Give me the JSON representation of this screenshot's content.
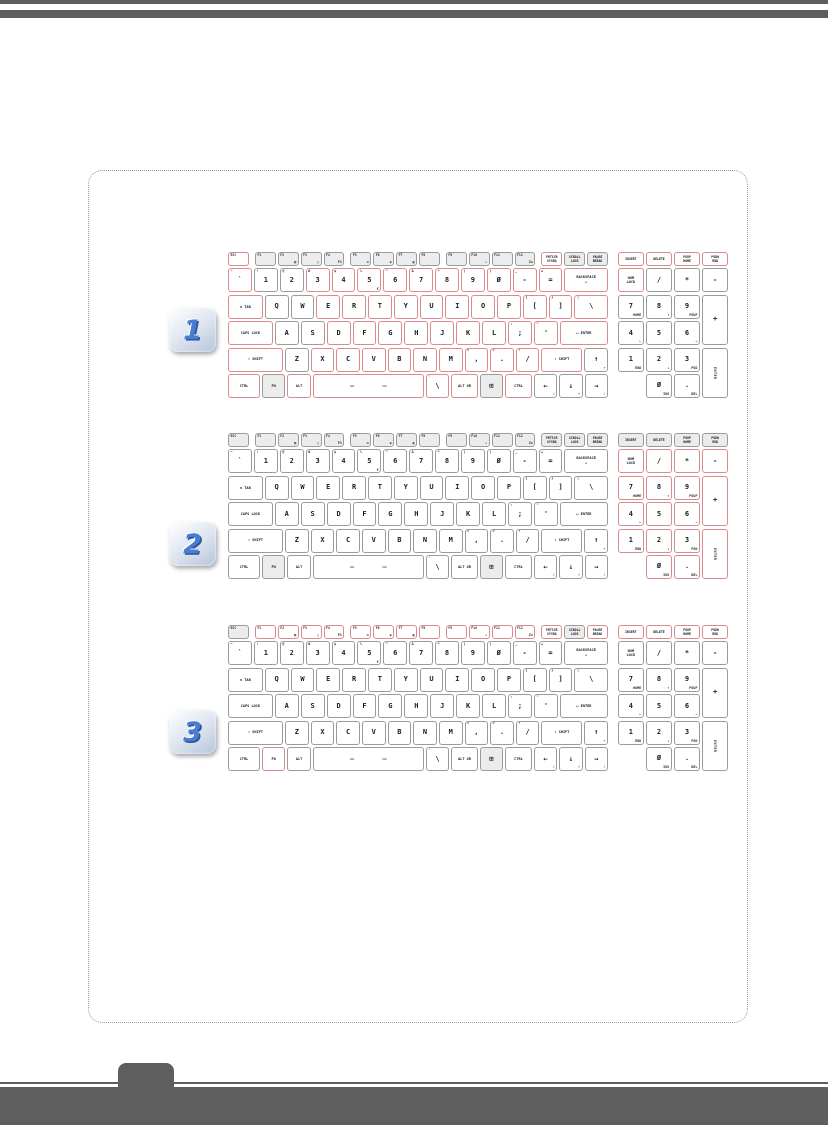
{
  "page": {
    "bar_color": "#5e5e5e",
    "panel_border_color": "#9a9a9a",
    "badge_number_color": "#4b7bd2",
    "key_highlight_color": "#db8b8b",
    "key_normal_border_color": "#9b9b9b"
  },
  "figures": [
    {
      "number": "1",
      "red_keys": [
        "esc",
        "grave",
        "n3",
        "n4",
        "n5",
        "n6",
        "n7",
        "n8",
        "n9",
        "n0",
        "minus",
        "equals",
        "backspace",
        "tab",
        "e",
        "r",
        "t",
        "y",
        "u",
        "i",
        "o",
        "p",
        "lbrk",
        "rbrk",
        "bslash",
        "caps",
        "d",
        "f",
        "g",
        "h",
        "j",
        "k",
        "l",
        "semi",
        "quote",
        "enter",
        "lshift",
        "x",
        "c",
        "v",
        "b",
        "n",
        "m",
        "comma",
        "period",
        "slash",
        "rshift",
        "lctrl",
        "alt",
        "space",
        "intl",
        "altgr",
        "rctrl",
        "prtscr",
        "npins",
        "npdel",
        "nppgup",
        "nppgdn",
        "npnum"
      ]
    },
    {
      "number": "2",
      "red_keys": [
        "npnum",
        "npdiv",
        "npmul",
        "npminus",
        "np7",
        "np8",
        "np9",
        "npplus",
        "np4",
        "np5",
        "np6",
        "np1",
        "np2",
        "np3",
        "npenter",
        "np0",
        "npdot"
      ]
    },
    {
      "number": "3",
      "red_keys": [
        "f1",
        "f2",
        "f3",
        "f4",
        "f5",
        "f6",
        "f7",
        "f8",
        "f9",
        "f10",
        "f11",
        "f12",
        "prtscr",
        "pause",
        "fn",
        "npins",
        "npdel",
        "nppgup",
        "nppgdn"
      ]
    }
  ],
  "keyboard": {
    "frow": [
      {
        "id": "esc",
        "t": "ESC"
      },
      {
        "id": "f1",
        "t": "F1",
        "g": 1
      },
      {
        "id": "f2",
        "t": "F2",
        "s": "▦"
      },
      {
        "id": "f3",
        "t": "F3",
        "s": "▢"
      },
      {
        "id": "f4",
        "t": "F4",
        "s": "P1"
      },
      {
        "id": "f5",
        "t": "F5",
        "s": "▬",
        "g": 1
      },
      {
        "id": "f6",
        "t": "F6",
        "s": "◉"
      },
      {
        "id": "f7",
        "t": "F7",
        "s": "▣"
      },
      {
        "id": "f8",
        "t": "F8"
      },
      {
        "id": "f9",
        "t": "F9",
        "g": 1
      },
      {
        "id": "f10",
        "t": "F10",
        "s": "✈"
      },
      {
        "id": "f11",
        "t": "F11"
      },
      {
        "id": "f12",
        "t": "F12",
        "s": "Zz"
      },
      {
        "id": "prtscr",
        "m": "PRTSCR\nSYSRQ",
        "g": 1
      },
      {
        "id": "scrlk",
        "m": "SCROLL\nLOCK"
      },
      {
        "id": "pause",
        "m": "PAUSE\nBREAK"
      }
    ],
    "rows": [
      [
        {
          "id": "grave",
          "t": "~",
          "m": "`"
        },
        {
          "id": "n1",
          "t": "!",
          "m": "1"
        },
        {
          "id": "n2",
          "t": "@",
          "m": "2"
        },
        {
          "id": "n3",
          "t": "#",
          "m": "3"
        },
        {
          "id": "n4",
          "t": "$",
          "m": "4"
        },
        {
          "id": "n5",
          "t": "%",
          "m": "5",
          "s": "€"
        },
        {
          "id": "n6",
          "t": "^",
          "m": "6"
        },
        {
          "id": "n7",
          "t": "&",
          "m": "7"
        },
        {
          "id": "n8",
          "t": "*",
          "m": "8"
        },
        {
          "id": "n9",
          "t": "(",
          "m": "9"
        },
        {
          "id": "n0",
          "t": ")",
          "m": "Ø"
        },
        {
          "id": "minus",
          "t": "_",
          "m": "-"
        },
        {
          "id": "equals",
          "t": "+",
          "m": "="
        },
        {
          "id": "backspace",
          "m": "BACKSPACE\n←",
          "w": 1.9
        }
      ],
      [
        {
          "id": "tab",
          "m": "⇆ TAB",
          "w": 1.5
        },
        {
          "id": "q",
          "m": "Q"
        },
        {
          "id": "w",
          "m": "W"
        },
        {
          "id": "e",
          "m": "E"
        },
        {
          "id": "r",
          "m": "R"
        },
        {
          "id": "t",
          "m": "T"
        },
        {
          "id": "y",
          "m": "Y"
        },
        {
          "id": "u",
          "m": "U"
        },
        {
          "id": "i",
          "m": "I"
        },
        {
          "id": "o",
          "m": "O"
        },
        {
          "id": "p",
          "m": "P"
        },
        {
          "id": "lbrk",
          "t": "{",
          "m": "["
        },
        {
          "id": "rbrk",
          "t": "}",
          "m": "]"
        },
        {
          "id": "bslash",
          "t": "|",
          "m": "\\",
          "w": 1.45
        }
      ],
      [
        {
          "id": "caps",
          "m": "CAPS LOCK",
          "w": 1.95
        },
        {
          "id": "a",
          "m": "A"
        },
        {
          "id": "s",
          "m": "S"
        },
        {
          "id": "d",
          "m": "D"
        },
        {
          "id": "f",
          "m": "F"
        },
        {
          "id": "g",
          "m": "G"
        },
        {
          "id": "h",
          "m": "H"
        },
        {
          "id": "j",
          "m": "J"
        },
        {
          "id": "k",
          "m": "K"
        },
        {
          "id": "l",
          "m": "L"
        },
        {
          "id": "semi",
          "t": ":",
          "m": ";"
        },
        {
          "id": "quote",
          "t": "\"",
          "m": "'"
        },
        {
          "id": "enter",
          "m": "↵ ENTER",
          "w": 2.1
        }
      ],
      [
        {
          "id": "lshift",
          "m": "⇧ SHIFT",
          "w": 2.45
        },
        {
          "id": "z",
          "m": "Z"
        },
        {
          "id": "x",
          "m": "X"
        },
        {
          "id": "c",
          "m": "C"
        },
        {
          "id": "v",
          "m": "V"
        },
        {
          "id": "b",
          "m": "B"
        },
        {
          "id": "n",
          "m": "N"
        },
        {
          "id": "m",
          "m": "M"
        },
        {
          "id": "comma",
          "t": "<",
          "m": ","
        },
        {
          "id": "period",
          "t": ">",
          "m": "."
        },
        {
          "id": "slash",
          "t": "?",
          "m": "/"
        },
        {
          "id": "rshift",
          "m": "⇧ SHIFT",
          "w": 1.8
        },
        {
          "id": "up",
          "m": "↑",
          "s": "☀"
        }
      ],
      [
        {
          "id": "lctrl",
          "m": "CTRL",
          "w": 1.4
        },
        {
          "id": "fn",
          "m": "FN"
        },
        {
          "id": "alt",
          "m": "ALT"
        },
        {
          "id": "space",
          "m": "— —",
          "w": 5.1
        },
        {
          "id": "intl",
          "t": "'",
          "m": "\\"
        },
        {
          "id": "altgr",
          "m": "ALT GR",
          "w": 1.15
        },
        {
          "id": "win",
          "m": "⊞"
        },
        {
          "id": "rctrl",
          "m": "CTRL",
          "w": 1.15
        },
        {
          "id": "left",
          "m": "←",
          "s": "♪"
        },
        {
          "id": "down",
          "m": "↓",
          "s": "☀"
        },
        {
          "id": "right",
          "m": "→",
          "s": "♪"
        }
      ]
    ],
    "numpad": [
      {
        "id": "npins",
        "m": "INSERT",
        "c": 1,
        "r": 1
      },
      {
        "id": "npdel",
        "m": "DELETE",
        "c": 2,
        "r": 1
      },
      {
        "id": "nppgup",
        "m": "PGUP\nHOME",
        "c": 3,
        "r": 1
      },
      {
        "id": "nppgdn",
        "m": "PGDN\nEND",
        "c": 4,
        "r": 1
      },
      {
        "id": "npnum",
        "m": "NUM\nLOCK",
        "c": 1,
        "r": 2
      },
      {
        "id": "npdiv",
        "m": "/",
        "c": 2,
        "r": 2
      },
      {
        "id": "npmul",
        "m": "*",
        "c": 3,
        "r": 2
      },
      {
        "id": "npminus",
        "m": "-",
        "c": 4,
        "r": 2
      },
      {
        "id": "np7",
        "m": "7",
        "s": "HOME",
        "c": 1,
        "r": 3
      },
      {
        "id": "np8",
        "m": "8",
        "s": "↑",
        "c": 2,
        "r": 3
      },
      {
        "id": "np9",
        "m": "9",
        "s": "PGUP",
        "c": 3,
        "r": 3
      },
      {
        "id": "npplus",
        "m": "+",
        "c": 4,
        "r": 3,
        "rs": 2
      },
      {
        "id": "np4",
        "m": "4",
        "s": "←",
        "c": 1,
        "r": 4
      },
      {
        "id": "np5",
        "m": "5",
        "c": 2,
        "r": 4
      },
      {
        "id": "np6",
        "m": "6",
        "s": "→",
        "c": 3,
        "r": 4
      },
      {
        "id": "np1",
        "m": "1",
        "s": "END",
        "c": 1,
        "r": 5
      },
      {
        "id": "np2",
        "m": "2",
        "s": "↓",
        "c": 2,
        "r": 5
      },
      {
        "id": "np3",
        "m": "3",
        "s": "PGD",
        "c": 3,
        "r": 5
      },
      {
        "id": "npenter",
        "m": "ENTER",
        "c": 4,
        "r": 5,
        "rs": 2
      },
      {
        "id": "np0",
        "m": "Ø",
        "s": "INS",
        "c": 2,
        "r": 6
      },
      {
        "id": "npdot",
        "m": ".",
        "s": "DEL",
        "c": 3,
        "r": 6
      }
    ]
  }
}
